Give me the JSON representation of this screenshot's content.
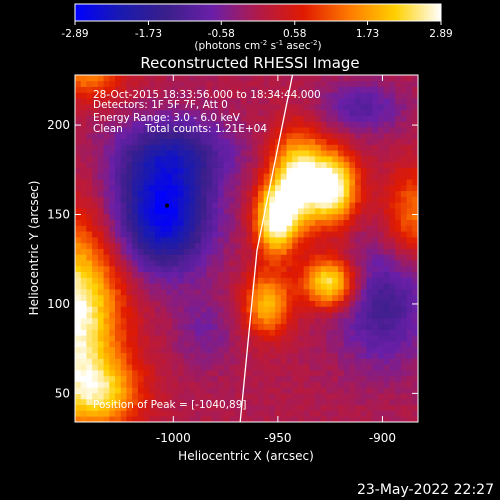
{
  "colorbar": {
    "ticks": [
      -2.89,
      -1.73,
      -0.58,
      0.58,
      1.73,
      2.89
    ],
    "tick_labels": [
      "-2.89",
      "-1.73",
      "-0.58",
      "0.58",
      "1.73",
      "2.89"
    ],
    "units_html": "(photons cm<tspan dy='-4' font-size='7'>-2</tspan><tspan dy='4'> s</tspan><tspan dy='-4' font-size='7'>-1</tspan><tspan dy='4'> asec</tspan><tspan dy='-4' font-size='7'>-2</tspan><tspan dy='4'>)</tspan>",
    "colormap": [
      "#0000ff",
      "#1a1ab0",
      "#3a1f8a",
      "#6a1fa8",
      "#b01a4a",
      "#e01a00",
      "#ff7a00",
      "#ffd000",
      "#ffffff"
    ]
  },
  "chart_data": {
    "type": "heatmap",
    "title": "Reconstructed RHESSI Image",
    "xlabel": "Heliocentric X (arcsec)",
    "ylabel": "Heliocentric Y (arcsec)",
    "xlim": [
      -1047,
      -883
    ],
    "ylim": [
      34,
      228
    ],
    "x_ticks": [
      -1000,
      -950,
      -900
    ],
    "x_tick_labels": [
      "-1000",
      "-950",
      "-900"
    ],
    "y_ticks": [
      50,
      100,
      150,
      200
    ],
    "y_tick_labels": [
      "50",
      "100",
      "150",
      "200"
    ],
    "value_range": [
      -2.89,
      2.89
    ],
    "peak_marker": {
      "x": -1040,
      "y": 89
    },
    "min_marker": {
      "x": -1003,
      "y": 155
    },
    "sources": [
      {
        "x": -940,
        "y": 170,
        "amp": 2.9,
        "sx": 9,
        "sy": 18
      },
      {
        "x": -923,
        "y": 165,
        "amp": 2.8,
        "sx": 8,
        "sy": 14
      },
      {
        "x": -951,
        "y": 147,
        "amp": 2.8,
        "sx": 7,
        "sy": 14
      },
      {
        "x": -925,
        "y": 112,
        "amp": 2.7,
        "sx": 9,
        "sy": 10
      },
      {
        "x": -955,
        "y": 100,
        "amp": 2.0,
        "sx": 8,
        "sy": 12
      },
      {
        "x": -1048,
        "y": 95,
        "amp": 3.0,
        "sx": 16,
        "sy": 34
      },
      {
        "x": -1035,
        "y": 50,
        "amp": 1.8,
        "sx": 14,
        "sy": 14
      },
      {
        "x": -885,
        "y": 150,
        "amp": 1.4,
        "sx": 10,
        "sy": 18
      },
      {
        "x": -1040,
        "y": 228,
        "amp": 1.4,
        "sx": 12,
        "sy": 10
      },
      {
        "x": -1005,
        "y": 150,
        "amp": -2.8,
        "sx": 16,
        "sy": 22
      },
      {
        "x": -1000,
        "y": 185,
        "amp": -1.4,
        "sx": 20,
        "sy": 14
      },
      {
        "x": -900,
        "y": 100,
        "amp": -1.3,
        "sx": 16,
        "sy": 24
      },
      {
        "x": -910,
        "y": 210,
        "amp": -1.0,
        "sx": 14,
        "sy": 10
      },
      {
        "x": -985,
        "y": 85,
        "amp": -0.6,
        "sx": 10,
        "sy": 14
      }
    ],
    "limb_line": [
      [
        -943,
        228
      ],
      [
        -960,
        130
      ],
      [
        -968,
        34
      ]
    ]
  },
  "annotations": {
    "time": "28-Oct-2015 18:33:56.000 to 18:34:44.000",
    "detectors": "Detectors: 1F 5F 7F, Att 0",
    "energy": "Energy Range: 3.0 - 6.0 keV",
    "clean": "Clean",
    "total_counts": "Total counts: 1.21E+04",
    "peak": "Position of Peak = [-1040,89]"
  },
  "footer": {
    "date": "23-May-2022 22:27"
  }
}
